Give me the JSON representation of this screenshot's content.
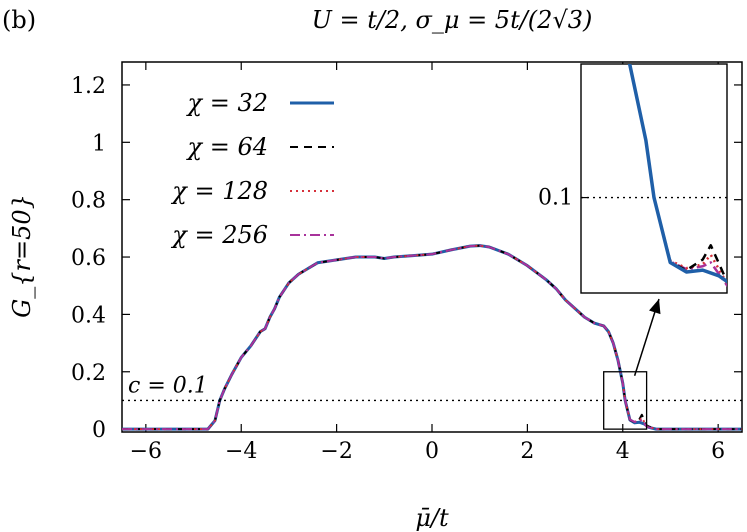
{
  "chart_data": {
    "type": "line",
    "panel_label": "(b)",
    "title": "U = t/2, σ_μ = 5t/(2√3)",
    "xlabel": "μ̄/t",
    "ylabel": "G_{r=50}",
    "xlim": [
      -6.5,
      6.5
    ],
    "ylim": [
      -0.01,
      1.28
    ],
    "xticks": [
      -6,
      -4,
      -2,
      0,
      2,
      4,
      6
    ],
    "xtick_labels": [
      "−6",
      "−4",
      "−2",
      "0",
      "2",
      "4",
      "6"
    ],
    "yticks": [
      0,
      0.2,
      0.4,
      0.6,
      0.8,
      1,
      1.2
    ],
    "ytick_labels": [
      "0",
      "0.2",
      "0.4",
      "0.6",
      "0.8",
      "1",
      "1.2"
    ],
    "legend_position": "top-left",
    "grid": false,
    "threshold": {
      "label": "c = 0.1",
      "value": 0.1
    },
    "series": [
      {
        "name": "χ = 32",
        "color": "#1f5fa8",
        "style": "solid",
        "width": 3,
        "x": [
          -6.5,
          -4.7,
          -4.55,
          -4.45,
          -4.35,
          -4.2,
          -4.0,
          -3.9,
          -3.8,
          -3.6,
          -3.5,
          -3.4,
          -3.3,
          -3.2,
          -3.0,
          -2.8,
          -2.6,
          -2.4,
          -2.0,
          -1.6,
          -1.2,
          -1.0,
          -0.8,
          -0.4,
          0.0,
          0.4,
          0.8,
          1.0,
          1.2,
          1.6,
          2.0,
          2.4,
          2.6,
          2.8,
          3.0,
          3.2,
          3.4,
          3.6,
          3.7,
          3.8,
          3.9,
          4.0,
          4.05,
          4.15,
          4.25,
          4.35,
          4.45,
          4.55,
          4.7,
          6.5
        ],
        "y": [
          0.0,
          0.0,
          0.03,
          0.1,
          0.14,
          0.19,
          0.25,
          0.27,
          0.29,
          0.34,
          0.35,
          0.39,
          0.42,
          0.46,
          0.51,
          0.54,
          0.56,
          0.58,
          0.59,
          0.6,
          0.6,
          0.595,
          0.6,
          0.605,
          0.61,
          0.625,
          0.638,
          0.64,
          0.635,
          0.61,
          0.57,
          0.52,
          0.49,
          0.45,
          0.42,
          0.39,
          0.37,
          0.36,
          0.34,
          0.3,
          0.24,
          0.16,
          0.1,
          0.032,
          0.022,
          0.024,
          0.018,
          0.006,
          0.0,
          0.0
        ]
      },
      {
        "name": "χ = 64",
        "color": "#000000",
        "style": "dashed",
        "width": 2,
        "x": [
          -6.5,
          -4.7,
          -4.55,
          -4.45,
          -4.35,
          -4.2,
          -4.0,
          -3.9,
          -3.8,
          -3.6,
          -3.5,
          -3.4,
          -3.3,
          -3.2,
          -3.0,
          -2.8,
          -2.6,
          -2.4,
          -2.0,
          -1.6,
          -1.2,
          -1.0,
          -0.8,
          -0.4,
          0.0,
          0.4,
          0.8,
          1.0,
          1.2,
          1.6,
          2.0,
          2.4,
          2.6,
          2.8,
          3.0,
          3.2,
          3.4,
          3.6,
          3.7,
          3.8,
          3.9,
          4.0,
          4.05,
          4.15,
          4.25,
          4.35,
          4.4,
          4.5,
          4.7,
          6.5
        ],
        "y": [
          0.0,
          0.0,
          0.03,
          0.1,
          0.14,
          0.19,
          0.25,
          0.27,
          0.29,
          0.34,
          0.35,
          0.39,
          0.42,
          0.46,
          0.51,
          0.54,
          0.56,
          0.58,
          0.59,
          0.6,
          0.6,
          0.595,
          0.6,
          0.605,
          0.61,
          0.625,
          0.638,
          0.64,
          0.635,
          0.61,
          0.57,
          0.52,
          0.49,
          0.45,
          0.42,
          0.39,
          0.37,
          0.36,
          0.34,
          0.3,
          0.24,
          0.16,
          0.1,
          0.032,
          0.024,
          0.035,
          0.05,
          0.012,
          0.0,
          0.0
        ]
      },
      {
        "name": "χ = 128",
        "color": "#d6303a",
        "style": "dotted",
        "width": 2,
        "x": [
          -6.5,
          -4.7,
          -4.55,
          -4.45,
          -4.35,
          -4.2,
          -4.0,
          -3.9,
          -3.8,
          -3.6,
          -3.5,
          -3.4,
          -3.3,
          -3.2,
          -3.0,
          -2.8,
          -2.6,
          -2.4,
          -2.0,
          -1.6,
          -1.2,
          -1.0,
          -0.8,
          -0.4,
          0.0,
          0.4,
          0.8,
          1.0,
          1.2,
          1.6,
          2.0,
          2.4,
          2.6,
          2.8,
          3.0,
          3.2,
          3.4,
          3.6,
          3.7,
          3.8,
          3.9,
          4.0,
          4.05,
          4.15,
          4.25,
          4.35,
          4.4,
          4.5,
          4.7,
          6.5
        ],
        "y": [
          0.0,
          0.0,
          0.03,
          0.1,
          0.14,
          0.19,
          0.25,
          0.27,
          0.29,
          0.34,
          0.35,
          0.39,
          0.42,
          0.46,
          0.51,
          0.54,
          0.56,
          0.58,
          0.59,
          0.6,
          0.6,
          0.595,
          0.6,
          0.605,
          0.61,
          0.625,
          0.638,
          0.64,
          0.635,
          0.61,
          0.57,
          0.52,
          0.49,
          0.45,
          0.42,
          0.39,
          0.37,
          0.36,
          0.34,
          0.3,
          0.24,
          0.16,
          0.1,
          0.034,
          0.026,
          0.03,
          0.04,
          0.01,
          0.0,
          0.0
        ]
      },
      {
        "name": "χ = 256",
        "color": "#a8329b",
        "style": "dashdot",
        "width": 2,
        "x": [
          -6.5,
          -4.7,
          -4.55,
          -4.45,
          -4.35,
          -4.2,
          -4.0,
          -3.9,
          -3.8,
          -3.6,
          -3.5,
          -3.4,
          -3.3,
          -3.2,
          -3.0,
          -2.8,
          -2.6,
          -2.4,
          -2.0,
          -1.6,
          -1.2,
          -1.0,
          -0.8,
          -0.4,
          0.0,
          0.4,
          0.8,
          1.0,
          1.2,
          1.6,
          2.0,
          2.4,
          2.6,
          2.8,
          3.0,
          3.2,
          3.4,
          3.6,
          3.7,
          3.8,
          3.9,
          4.0,
          4.05,
          4.15,
          4.25,
          4.35,
          4.4,
          4.5,
          4.7,
          6.5
        ],
        "y": [
          0.0,
          0.0,
          0.03,
          0.1,
          0.14,
          0.19,
          0.25,
          0.27,
          0.29,
          0.34,
          0.35,
          0.39,
          0.42,
          0.46,
          0.51,
          0.54,
          0.56,
          0.58,
          0.59,
          0.6,
          0.6,
          0.595,
          0.6,
          0.605,
          0.61,
          0.625,
          0.638,
          0.64,
          0.635,
          0.61,
          0.57,
          0.52,
          0.49,
          0.45,
          0.42,
          0.39,
          0.37,
          0.36,
          0.34,
          0.3,
          0.24,
          0.16,
          0.1,
          0.033,
          0.025,
          0.028,
          0.032,
          0.008,
          0.0,
          0.0
        ]
      }
    ],
    "inset": {
      "xlim": [
        3.6,
        4.5
      ],
      "ylim": [
        0.0,
        0.24
      ],
      "ytick_labels": [
        "0.1"
      ],
      "yticks": [
        0.1
      ],
      "source_box_x": [
        3.6,
        4.5
      ],
      "source_box_y": [
        0.0,
        0.2
      ]
    }
  }
}
